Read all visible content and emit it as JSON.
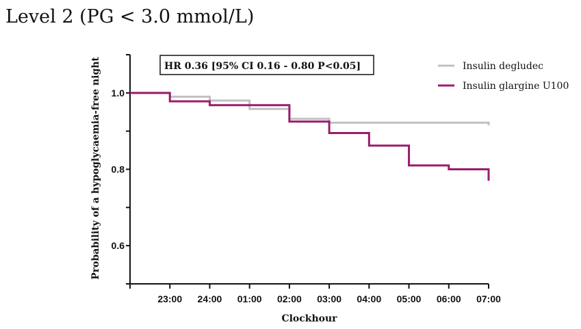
{
  "title": "Level 2 (PG < 3.0 mmol/L)",
  "annotation": "HR 0.36 [95% CI 0.16 - 0.80 P<0.05]",
  "chart_data": {
    "type": "line",
    "step": true,
    "xlabel": "Clockhour",
    "ylabel": "Probability of a hypoglycaemia-free night",
    "x_ticks": [
      "23:00",
      "24:00",
      "01:00",
      "02:00",
      "03:00",
      "04:00",
      "05:00",
      "06:00",
      "07:00"
    ],
    "x_range_hours_from_2300": [
      -1,
      8
    ],
    "ylim": [
      0.5,
      1.1
    ],
    "y_ticks": [
      0.6,
      0.8,
      1.0
    ],
    "y_tick_labels": [
      "0.6",
      "0.8",
      "1.0"
    ],
    "grid": false,
    "legend_position": "top-right",
    "series": [
      {
        "name": "Insulin degludec",
        "color": "#c0c0c0",
        "steps": [
          {
            "x": "22:00",
            "y": 1.0
          },
          {
            "x": "23:00",
            "y": 0.99
          },
          {
            "x": "24:00",
            "y": 0.98
          },
          {
            "x": "01:00",
            "y": 0.958
          },
          {
            "x": "02:00",
            "y": 0.932
          },
          {
            "x": "03:00",
            "y": 0.922
          },
          {
            "x": "07:00",
            "y": 0.922
          }
        ],
        "end_drop_y": 0.915
      },
      {
        "name": "Insulin glargine U100",
        "color": "#9b1b6b",
        "steps": [
          {
            "x": "22:00",
            "y": 1.0
          },
          {
            "x": "23:00",
            "y": 0.978
          },
          {
            "x": "24:00",
            "y": 0.968
          },
          {
            "x": "01:00",
            "y": 0.968
          },
          {
            "x": "02:00",
            "y": 0.925
          },
          {
            "x": "03:00",
            "y": 0.895
          },
          {
            "x": "04:00",
            "y": 0.862
          },
          {
            "x": "05:00",
            "y": 0.81
          },
          {
            "x": "06:00",
            "y": 0.8
          },
          {
            "x": "07:00",
            "y": 0.8
          }
        ],
        "end_drop_y": 0.77
      }
    ]
  }
}
